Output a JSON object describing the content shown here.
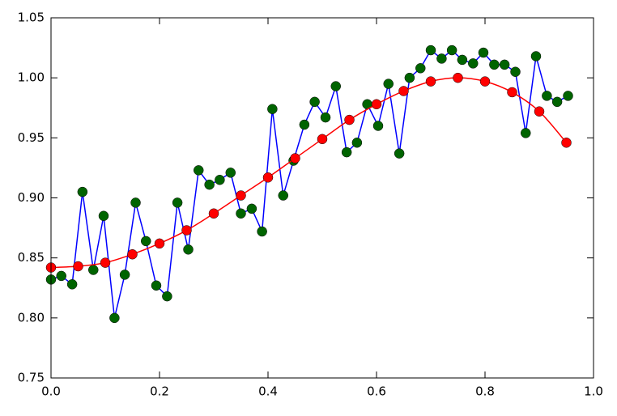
{
  "chart_data": {
    "type": "line",
    "series": [
      {
        "color": "#0000ff",
        "marker_color": "#006400",
        "smooth": false,
        "x": [
          0,
          0.019,
          0.039,
          0.058,
          0.078,
          0.097,
          0.117,
          0.136,
          0.156,
          0.175,
          0.194,
          0.214,
          0.233,
          0.253,
          0.272,
          0.292,
          0.311,
          0.331,
          0.35,
          0.37,
          0.389,
          0.408,
          0.428,
          0.447,
          0.467,
          0.486,
          0.506,
          0.525,
          0.545,
          0.564,
          0.583,
          0.603,
          0.622,
          0.642,
          0.661,
          0.681,
          0.7,
          0.72,
          0.739,
          0.758,
          0.778,
          0.797,
          0.817,
          0.836,
          0.856,
          0.875,
          0.894,
          0.914,
          0.933,
          0.953
        ],
        "values": [
          0.832,
          0.835,
          0.828,
          0.905,
          0.84,
          0.885,
          0.8,
          0.836,
          0.896,
          0.864,
          0.827,
          0.818,
          0.896,
          0.857,
          0.923,
          0.911,
          0.915,
          0.921,
          0.887,
          0.891,
          0.872,
          0.974,
          0.902,
          0.931,
          0.961,
          0.98,
          0.967,
          0.993,
          0.938,
          0.946,
          0.978,
          0.96,
          0.995,
          0.937,
          1.0,
          1.008,
          1.023,
          1.016,
          1.023,
          1.015,
          1.012,
          1.021,
          1.011,
          1.011,
          1.005,
          0.954,
          1.018,
          0.985,
          0.98,
          0.985
        ]
      },
      {
        "color": "#ff0000",
        "marker_color": "#ff0000",
        "smooth": true,
        "x": [
          0,
          0.05,
          0.1,
          0.15,
          0.2,
          0.25,
          0.3,
          0.35,
          0.4,
          0.45,
          0.5,
          0.55,
          0.6,
          0.65,
          0.7,
          0.75,
          0.8,
          0.85,
          0.9,
          0.95
        ],
        "values": [
          0.842,
          0.843,
          0.846,
          0.853,
          0.862,
          0.873,
          0.887,
          0.902,
          0.917,
          0.933,
          0.949,
          0.965,
          0.978,
          0.989,
          0.997,
          1.0,
          0.997,
          0.988,
          0.972,
          0.946
        ]
      }
    ],
    "xlim": [
      0,
      1
    ],
    "xticks": [
      {
        "value": 0,
        "label": "0.0"
      },
      0.2,
      0.4,
      0.6,
      0.8,
      {
        "value": 1,
        "label": "1.0"
      }
    ],
    "ylim": [
      0.75,
      1.05
    ],
    "yticks": [
      0.75,
      {
        "value": 0.8,
        "label": "0.80"
      },
      0.85,
      {
        "value": 0.9,
        "label": "0.90"
      },
      0.95,
      {
        "value": 1.0,
        "label": "1.00"
      },
      1.05
    ]
  }
}
